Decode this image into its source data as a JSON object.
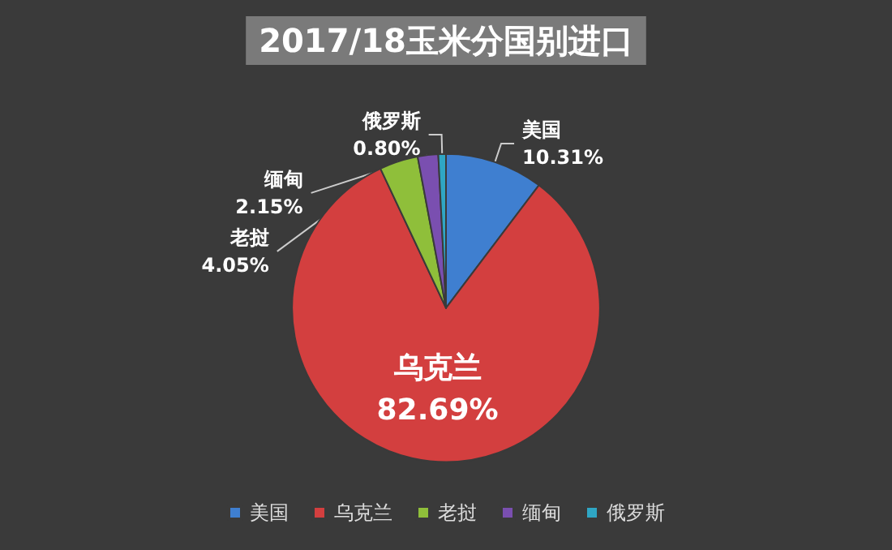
{
  "chart_data": {
    "type": "pie",
    "title": "2017/18玉米分国别进口",
    "categories": [
      "美国",
      "乌克兰",
      "老挝",
      "缅甸",
      "俄罗斯"
    ],
    "values": [
      10.31,
      82.69,
      4.05,
      2.15,
      0.8
    ],
    "value_labels": [
      "10.31%",
      "82.69%",
      "4.05%",
      "2.15%",
      "0.80%"
    ],
    "colors": [
      "#3f7fd0",
      "#d33f3f",
      "#8fbf3a",
      "#7a4fb0",
      "#2fa6c4"
    ],
    "legend": "bottom"
  }
}
